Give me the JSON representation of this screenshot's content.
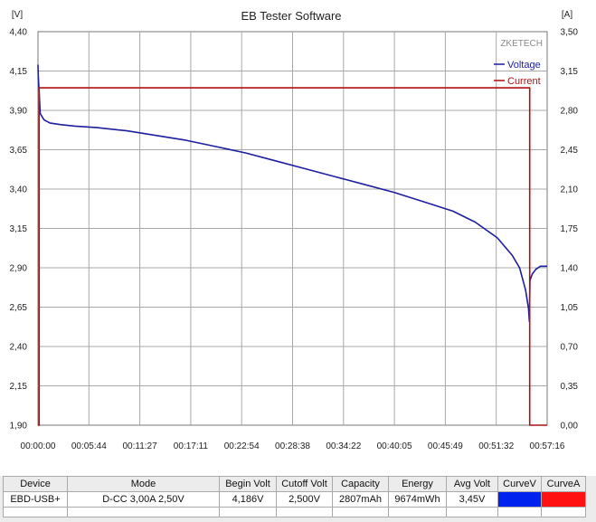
{
  "title": "EB Tester Software",
  "watermark": "ZKETECH",
  "colors": {
    "voltage": "#1e1ea0",
    "current": "#b01010",
    "grid": "#a8a8a8",
    "plot_border": "#777777",
    "curve_v_swatch": "#0022ee",
    "curve_a_swatch": "#ff1111"
  },
  "chart_data": {
    "type": "line",
    "title": "EB Tester Software",
    "y_left_unit": "[V]",
    "y_right_unit": "[A]",
    "y_left_range": [
      1.9,
      4.4
    ],
    "y_right_range": [
      0.0,
      3.5
    ],
    "y_left_ticks": [
      "1,90",
      "2,15",
      "2,40",
      "2,65",
      "2,90",
      "3,15",
      "3,40",
      "3,65",
      "3,90",
      "4,15",
      "4,40"
    ],
    "y_right_ticks": [
      "0,00",
      "0,35",
      "0,70",
      "1,05",
      "1,40",
      "1,75",
      "2,10",
      "2,45",
      "2,80",
      "3,15",
      "3,50"
    ],
    "x_range_seconds": [
      0,
      3436
    ],
    "x_tick_labels": [
      "00:00:00",
      "00:05:44",
      "00:11:27",
      "00:17:11",
      "00:22:54",
      "00:28:38",
      "00:34:22",
      "00:40:05",
      "00:45:49",
      "00:51:32",
      "00:57:16"
    ],
    "grid": true,
    "legend_position": "top-right",
    "series": [
      {
        "name": "Voltage",
        "axis": "left",
        "points": [
          [
            0,
            4.19
          ],
          [
            2,
            4.12
          ],
          [
            6,
            4.05
          ],
          [
            15,
            3.88
          ],
          [
            40,
            3.84
          ],
          [
            80,
            3.82
          ],
          [
            150,
            3.81
          ],
          [
            250,
            3.8
          ],
          [
            400,
            3.79
          ],
          [
            600,
            3.77
          ],
          [
            800,
            3.74
          ],
          [
            1000,
            3.71
          ],
          [
            1200,
            3.67
          ],
          [
            1400,
            3.63
          ],
          [
            1600,
            3.58
          ],
          [
            1800,
            3.53
          ],
          [
            2000,
            3.48
          ],
          [
            2200,
            3.43
          ],
          [
            2400,
            3.38
          ],
          [
            2600,
            3.32
          ],
          [
            2800,
            3.26
          ],
          [
            2950,
            3.19
          ],
          [
            3100,
            3.09
          ],
          [
            3200,
            2.98
          ],
          [
            3250,
            2.9
          ],
          [
            3290,
            2.76
          ],
          [
            3310,
            2.64
          ],
          [
            3316,
            2.56
          ],
          [
            3320,
            2.82
          ],
          [
            3335,
            2.86
          ],
          [
            3360,
            2.89
          ],
          [
            3390,
            2.91
          ],
          [
            3436,
            2.91
          ]
        ]
      },
      {
        "name": "Current",
        "axis": "right",
        "points": [
          [
            0,
            0.0
          ],
          [
            8,
            0.0
          ],
          [
            8,
            3.0
          ],
          [
            3318,
            3.0
          ],
          [
            3318,
            0.0
          ],
          [
            3436,
            0.0
          ]
        ]
      }
    ]
  },
  "table": {
    "headers": [
      "Device",
      "Mode",
      "Begin Volt",
      "Cutoff Volt",
      "Capacity",
      "Energy",
      "Avg Volt",
      "CurveV",
      "CurveA"
    ],
    "row": {
      "device": "EBD-USB+",
      "mode": "D-CC  3,00A  2,50V",
      "begin_volt": "4,186V",
      "cutoff_volt": "2,500V",
      "capacity": "2807mAh",
      "energy": "9674mWh",
      "avg_volt": "3,45V"
    }
  }
}
